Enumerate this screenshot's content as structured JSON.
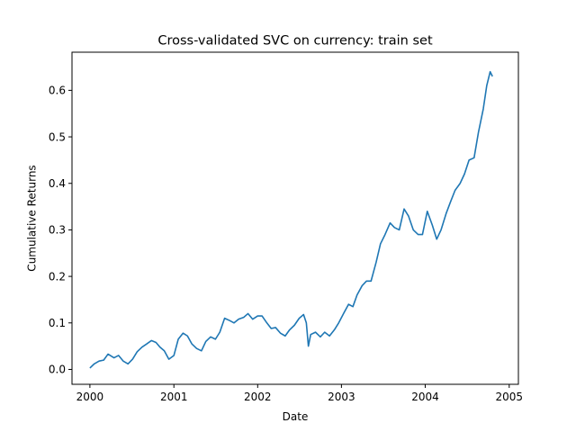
{
  "chart_data": {
    "type": "line",
    "title": "Cross-validated SVC on currency: train set",
    "xlabel": "Date",
    "ylabel": "Cumulative Returns",
    "xlim": [
      "1999-10-15",
      "2005-02-10"
    ],
    "ylim": [
      -0.032,
      0.682
    ],
    "x_ticks": [
      "2000-01-01",
      "2001-01-01",
      "2002-01-01",
      "2003-01-01",
      "2004-01-01",
      "2005-01-01"
    ],
    "x_tick_labels": [
      "2000",
      "2001",
      "2002",
      "2003",
      "2004",
      "2005"
    ],
    "y_ticks": [
      0.0,
      0.1,
      0.2,
      0.3,
      0.4,
      0.5,
      0.6
    ],
    "y_tick_labels": [
      "0.0",
      "0.1",
      "0.2",
      "0.3",
      "0.4",
      "0.5",
      "0.6"
    ],
    "grid": false,
    "legend": "none",
    "series": [
      {
        "color": "#1f77b4",
        "x": [
          "2000-01-01",
          "2000-01-20",
          "2000-02-10",
          "2000-03-01",
          "2000-03-20",
          "2000-04-15",
          "2000-05-05",
          "2000-05-25",
          "2000-06-15",
          "2000-07-05",
          "2000-07-25",
          "2000-08-15",
          "2000-09-05",
          "2000-09-25",
          "2000-10-15",
          "2000-11-01",
          "2000-11-20",
          "2000-12-10",
          "2001-01-01",
          "2001-01-20",
          "2001-02-10",
          "2001-03-01",
          "2001-03-20",
          "2001-04-10",
          "2001-05-01",
          "2001-05-20",
          "2001-06-10",
          "2001-07-01",
          "2001-07-20",
          "2001-08-10",
          "2001-09-01",
          "2001-09-20",
          "2001-10-10",
          "2001-11-01",
          "2001-11-20",
          "2001-12-10",
          "2002-01-01",
          "2002-01-20",
          "2002-02-10",
          "2002-03-01",
          "2002-03-20",
          "2002-04-10",
          "2002-05-01",
          "2002-05-20",
          "2002-06-10",
          "2002-07-01",
          "2002-07-20",
          "2002-08-01",
          "2002-08-10",
          "2002-08-20",
          "2002-09-10",
          "2002-10-01",
          "2002-10-20",
          "2002-11-10",
          "2002-12-01",
          "2002-12-20",
          "2003-01-10",
          "2003-02-01",
          "2003-02-20",
          "2003-03-10",
          "2003-04-01",
          "2003-04-20",
          "2003-05-10",
          "2003-06-01",
          "2003-06-20",
          "2003-07-10",
          "2003-08-01",
          "2003-08-20",
          "2003-09-10",
          "2003-10-01",
          "2003-10-20",
          "2003-11-10",
          "2003-12-01",
          "2003-12-20",
          "2004-01-10",
          "2004-02-01",
          "2004-02-20",
          "2004-03-10",
          "2004-04-01",
          "2004-04-20",
          "2004-05-10",
          "2004-06-01",
          "2004-06-20",
          "2004-07-10",
          "2004-08-01",
          "2004-08-20",
          "2004-09-10",
          "2004-09-25",
          "2004-10-10",
          "2004-10-20"
        ],
        "values": [
          0.003,
          0.012,
          0.018,
          0.02,
          0.033,
          0.025,
          0.03,
          0.018,
          0.012,
          0.022,
          0.038,
          0.048,
          0.055,
          0.062,
          0.058,
          0.048,
          0.04,
          0.022,
          0.03,
          0.065,
          0.078,
          0.072,
          0.055,
          0.045,
          0.04,
          0.06,
          0.07,
          0.065,
          0.08,
          0.11,
          0.105,
          0.1,
          0.108,
          0.112,
          0.12,
          0.108,
          0.115,
          0.115,
          0.1,
          0.088,
          0.09,
          0.078,
          0.072,
          0.085,
          0.095,
          0.11,
          0.118,
          0.1,
          0.05,
          0.075,
          0.08,
          0.07,
          0.08,
          0.072,
          0.085,
          0.1,
          0.12,
          0.14,
          0.135,
          0.16,
          0.18,
          0.19,
          0.19,
          0.23,
          0.27,
          0.29,
          0.315,
          0.305,
          0.3,
          0.345,
          0.33,
          0.3,
          0.29,
          0.29,
          0.34,
          0.31,
          0.28,
          0.3,
          0.335,
          0.36,
          0.385,
          0.4,
          0.42,
          0.45,
          0.455,
          0.51,
          0.56,
          0.61,
          0.64,
          0.63
        ]
      }
    ]
  }
}
